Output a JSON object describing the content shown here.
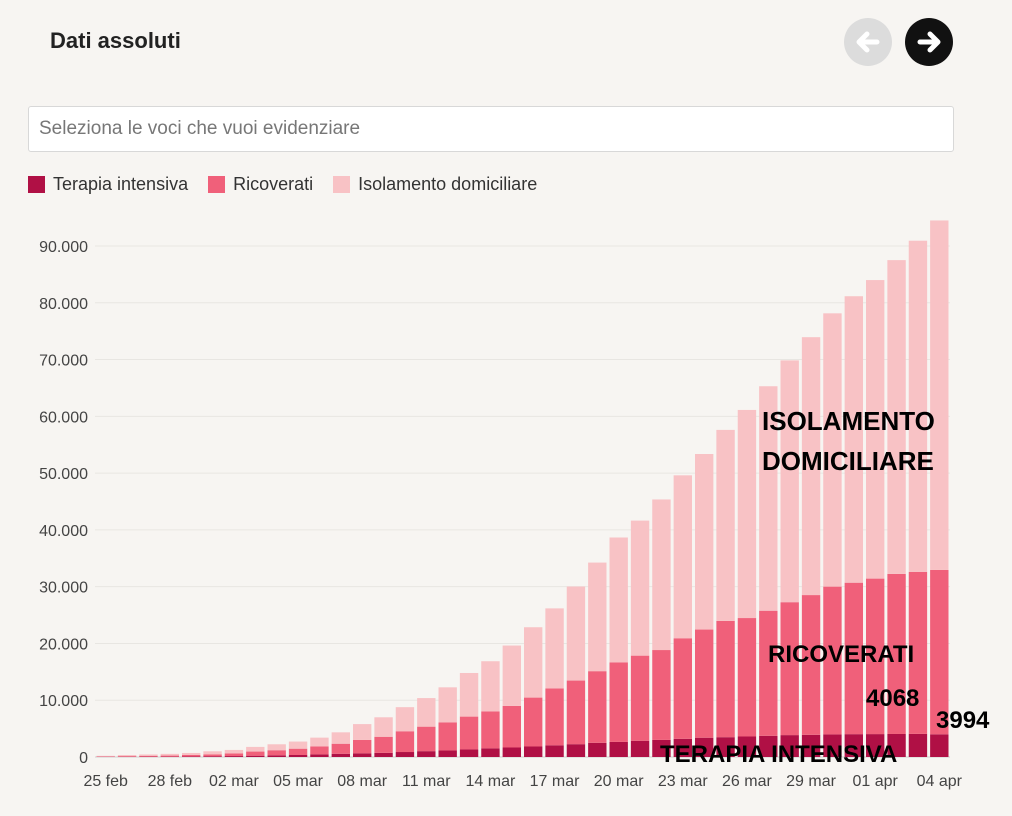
{
  "header": {
    "title": "Dati assoluti"
  },
  "search": {
    "placeholder": "Seleziona le voci che vuoi evidenziare"
  },
  "colors": {
    "terapia": "#b01045",
    "ricoverati": "#f0607a",
    "isolamento": "#f8c2c5"
  },
  "chart_data": {
    "type": "bar",
    "stacked": true,
    "legend": "top-left",
    "grid": true,
    "ylim": [
      0,
      90000
    ],
    "y_ticks": [
      "0",
      "10.000",
      "20.000",
      "30.000",
      "40.000",
      "50.000",
      "60.000",
      "70.000",
      "80.000",
      "90.000"
    ],
    "x_tick_labels": [
      "25 feb",
      "28 feb",
      "02 mar",
      "05 mar",
      "08 mar",
      "11 mar",
      "14 mar",
      "17 mar",
      "20 mar",
      "23 mar",
      "26 mar",
      "29 mar",
      "01 apr",
      "04 apr"
    ],
    "categories": [
      "25 feb",
      "26 feb",
      "27 feb",
      "28 feb",
      "29 feb",
      "01 mar",
      "02 mar",
      "03 mar",
      "04 mar",
      "05 mar",
      "06 mar",
      "07 mar",
      "08 mar",
      "09 mar",
      "10 mar",
      "11 mar",
      "12 mar",
      "13 mar",
      "14 mar",
      "15 mar",
      "16 mar",
      "17 mar",
      "18 mar",
      "19 mar",
      "20 mar",
      "21 mar",
      "22 mar",
      "23 mar",
      "24 mar",
      "25 mar",
      "26 mar",
      "27 mar",
      "28 mar",
      "29 mar",
      "30 mar",
      "31 mar",
      "01 apr",
      "02 apr",
      "03 apr",
      "04 apr"
    ],
    "series": [
      {
        "name": "Terapia intensiva",
        "values": [
          35,
          36,
          56,
          64,
          105,
          140,
          166,
          229,
          295,
          351,
          462,
          567,
          650,
          733,
          877,
          1028,
          1153,
          1328,
          1518,
          1672,
          1851,
          2060,
          2257,
          2498,
          2655,
          2857,
          3009,
          3204,
          3396,
          3489,
          3612,
          3732,
          3856,
          3906,
          3981,
          4023,
          4035,
          4053,
          4068,
          3994
        ]
      },
      {
        "name": "Ricoverati",
        "values": [
          79,
          126,
          161,
          186,
          250,
          323,
          466,
          729,
          898,
          1113,
          1399,
          1771,
          2366,
          2831,
          3655,
          4317,
          4923,
          5788,
          6504,
          7328,
          8613,
          10017,
          11206,
          12618,
          13990,
          14995,
          15829,
          17708,
          19051,
          20474,
          20861,
          22034,
          23410,
          24614,
          26029,
          26676,
          27386,
          28192,
          28544,
          28949
        ]
      },
      {
        "name": "Isolamento domiciliare",
        "values": [
          91,
          186,
          225,
          301,
          355,
          543,
          613,
          821,
          1050,
          1255,
          1551,
          2008,
          2779,
          3430,
          4248,
          5034,
          6197,
          7680,
          8846,
          10632,
          12392,
          14100,
          16564,
          19128,
          22016,
          23783,
          26522,
          28697,
          30920,
          33648,
          36653,
          39533,
          42588,
          45420,
          48134,
          50456,
          52579,
          55270,
          58320,
          61557
        ]
      }
    ],
    "annotations": [
      {
        "name": "isolamento-label",
        "lines": [
          "ISOLAMENTO",
          "DOMICILIARE"
        ]
      },
      {
        "name": "ricoverati-label",
        "lines": [
          "RICOVERATI"
        ]
      },
      {
        "name": "value-4068",
        "lines": [
          "4068"
        ]
      },
      {
        "name": "value-3994",
        "lines": [
          "3994"
        ]
      },
      {
        "name": "terapia-label",
        "lines": [
          "TERAPIA INTENSIVA"
        ]
      }
    ]
  }
}
